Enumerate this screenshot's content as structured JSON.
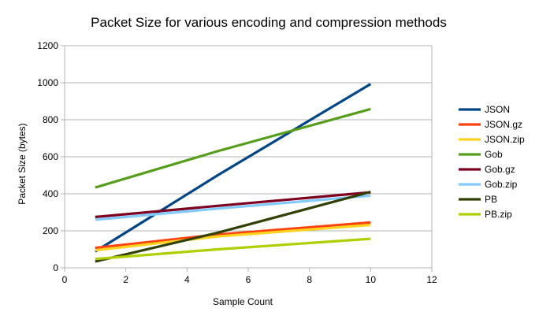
{
  "chart_data": {
    "type": "line",
    "title": "Packet Size for various encoding and compression methods",
    "xlabel": "Sample Count",
    "ylabel": "Packet Size (bytes)",
    "xlim": [
      0,
      12
    ],
    "ylim": [
      0,
      1200
    ],
    "xticks": [
      0,
      2,
      4,
      6,
      8,
      10,
      12
    ],
    "yticks": [
      0,
      200,
      400,
      600,
      800,
      1000,
      1200
    ],
    "grid": "horizontal",
    "legend_position": "right",
    "x": [
      1,
      5,
      10
    ],
    "series": [
      {
        "name": "JSON",
        "color": "#004586",
        "values": [
          88,
          500,
          993
        ]
      },
      {
        "name": "JSON.gz",
        "color": "#ff420e",
        "values": [
          108,
          180,
          245
        ]
      },
      {
        "name": "JSON.zip",
        "color": "#ffd320",
        "values": [
          95,
          170,
          232
        ]
      },
      {
        "name": "Gob",
        "color": "#579d1c",
        "values": [
          434,
          630,
          858
        ]
      },
      {
        "name": "Gob.gz",
        "color": "#7e0021",
        "values": [
          275,
          335,
          408
        ]
      },
      {
        "name": "Gob.zip",
        "color": "#83caff",
        "values": [
          260,
          320,
          390
        ]
      },
      {
        "name": "PB",
        "color": "#314004",
        "values": [
          34,
          190,
          410
        ]
      },
      {
        "name": "PB.zip",
        "color": "#aecf00",
        "values": [
          48,
          100,
          157
        ]
      }
    ]
  }
}
